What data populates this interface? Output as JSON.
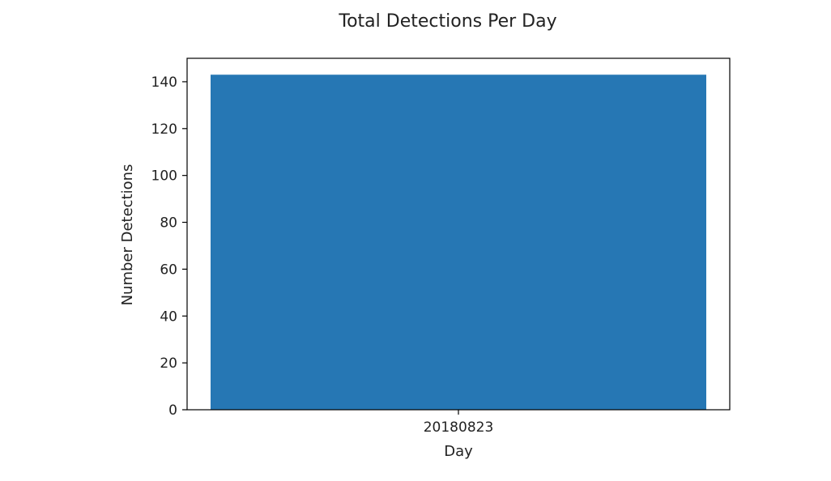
{
  "chart_data": {
    "type": "bar",
    "title": "Total Detections Per Day",
    "xlabel": "Day",
    "ylabel": "Number Detections",
    "categories": [
      "20180823"
    ],
    "values": [
      143
    ],
    "ylim": [
      0,
      150
    ],
    "yticks": [
      0,
      20,
      40,
      60,
      80,
      100,
      120,
      140
    ],
    "grid": false,
    "legend": "none",
    "bar_color": "#2677b4"
  }
}
